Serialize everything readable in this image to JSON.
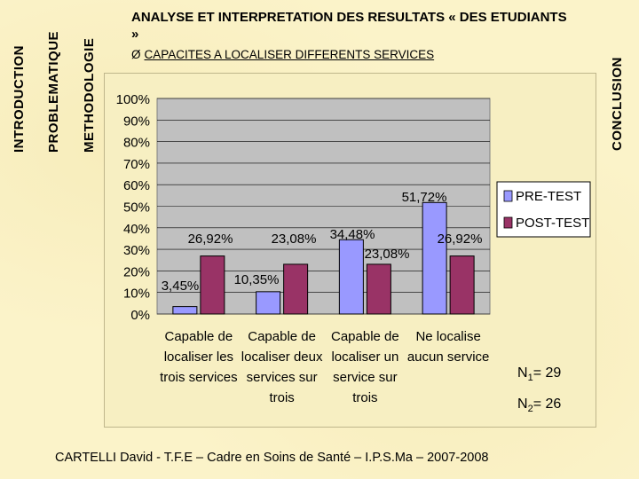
{
  "nav": {
    "introduction": "INTRODUCTION",
    "problematique": "PROBLEMATIQUE",
    "methodologie": "METHODOLOGIE",
    "conclusion": "CONCLUSION"
  },
  "header": {
    "title": "ANALYSE ET INTERPRETATION DES RESULTATS « DES ETUDIANTS »",
    "bullet": "Ø",
    "subtitle": "CAPACITES A LOCALISER DIFFERENTS SERVICES"
  },
  "sample": {
    "n1_label": "N",
    "n1_sub": "1",
    "n1_value": "= 29",
    "n2_label": "N",
    "n2_sub": "2",
    "n2_value": "= 26"
  },
  "footer": "CARTELLI David - T.F.E – Cadre en Soins de Santé – I.P.S.Ma – 2007-2008",
  "colors": {
    "pre": "#9999ff",
    "post": "#993366",
    "plot_bg": "#c0c0c0"
  },
  "chart_data": {
    "type": "bar",
    "categories": [
      [
        "Capable de",
        "localiser les",
        "trois services"
      ],
      [
        "Capable de",
        "localiser deux",
        "services sur",
        "trois"
      ],
      [
        "Capable de",
        "localiser un",
        "service sur",
        "trois"
      ],
      [
        "Ne localise",
        "aucun service"
      ]
    ],
    "series": [
      {
        "name": "PRE-TEST",
        "values": [
          3.45,
          10.35,
          34.48,
          51.72
        ],
        "labels": [
          "3,45%",
          "10,35%",
          "34,48%",
          "51,72%"
        ]
      },
      {
        "name": "POST-TEST",
        "values": [
          26.92,
          23.08,
          23.08,
          26.92
        ],
        "labels": [
          "26,92%",
          "23,08%",
          "23,08%",
          "26,92%"
        ]
      }
    ],
    "yticks": [
      "0%",
      "10%",
      "20%",
      "30%",
      "40%",
      "50%",
      "60%",
      "70%",
      "80%",
      "90%",
      "100%"
    ],
    "ylim": [
      0,
      100
    ],
    "grid": true,
    "legend": "right"
  }
}
